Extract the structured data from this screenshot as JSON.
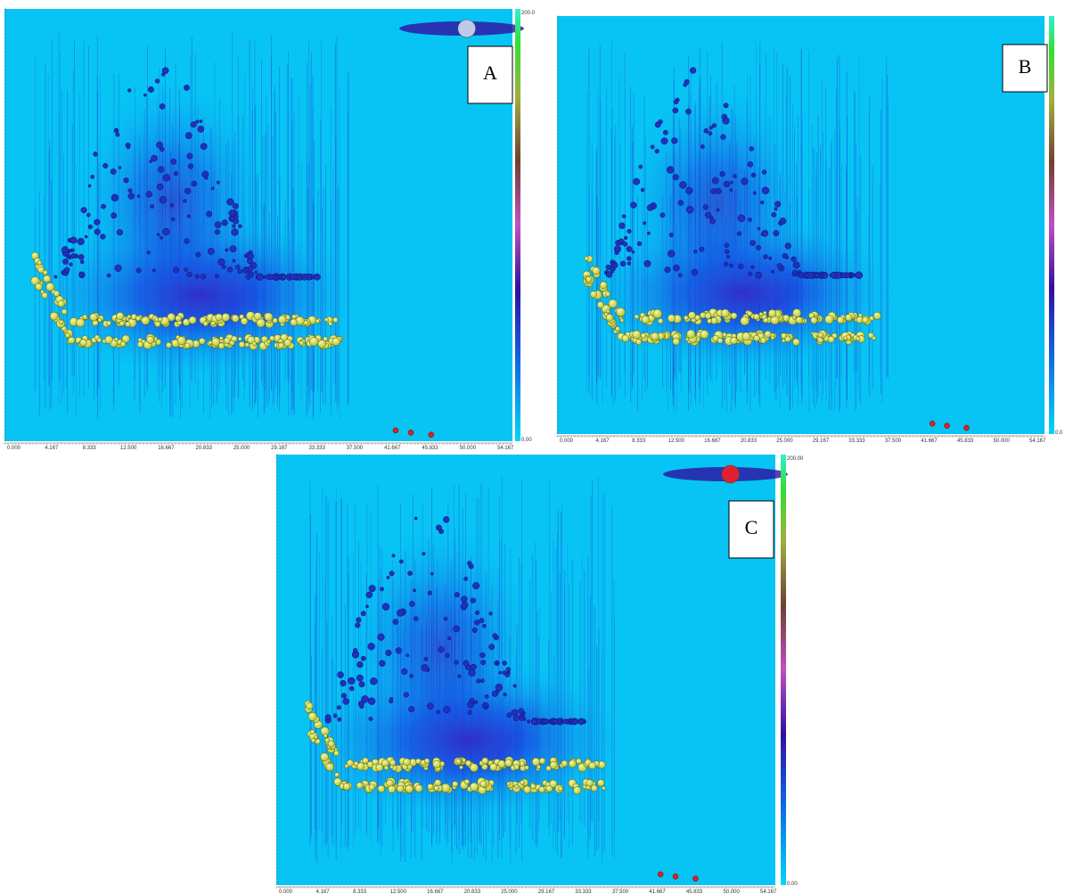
{
  "panels": [
    {
      "label": "A",
      "colorbar_max": "200.0",
      "colorbar_min": "0.00",
      "x_tick_labels": [
        "0.000",
        "4.167",
        "8.333",
        "12.500",
        "16.667",
        "20.833",
        "25.000",
        "29.167",
        "33.333",
        "37.500",
        "41.667",
        "45.833",
        "50.000",
        "54.167"
      ]
    },
    {
      "label": "B",
      "colorbar_min": "0.0",
      "x_tick_labels": [
        "0.000",
        "4.167",
        "8.333",
        "12.500",
        "16.667",
        "20.833",
        "25.000",
        "29.167",
        "33.333",
        "37.500",
        "41.667",
        "45.833",
        "50.000",
        "54.167"
      ]
    },
    {
      "label": "C",
      "colorbar_max": "200.00",
      "colorbar_min": "0.00",
      "x_tick_labels": [
        "0.000",
        "4.167",
        "8.333",
        "12.500",
        "16.667",
        "20.833",
        "25.000",
        "29.167",
        "33.333",
        "37.500",
        "41.667",
        "45.833",
        "50.000",
        "54.167"
      ]
    }
  ]
}
